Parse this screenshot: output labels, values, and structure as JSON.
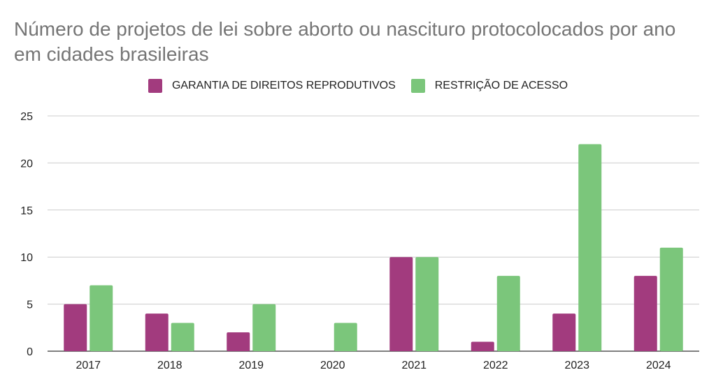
{
  "chart_data": {
    "type": "bar",
    "title": "Número de projetos de lei sobre aborto ou nascituro protocolocados por ano em cidades brasileiras",
    "categories": [
      "2017",
      "2018",
      "2019",
      "2020",
      "2021",
      "2022",
      "2023",
      "2024"
    ],
    "series": [
      {
        "name": "GARANTIA DE DIREITOS REPRODUTIVOS",
        "color": "#A23B7E",
        "values": [
          5,
          4,
          2,
          0,
          10,
          1,
          4,
          8
        ]
      },
      {
        "name": "RESTRIÇÃO DE ACESSO",
        "color": "#7BC67B",
        "values": [
          7,
          3,
          5,
          3,
          10,
          8,
          22,
          11
        ]
      }
    ],
    "ylim": [
      0,
      25
    ],
    "yticks": [
      "0",
      "5",
      "10",
      "15",
      "20",
      "25"
    ],
    "grid": true,
    "legend": "top-center"
  }
}
